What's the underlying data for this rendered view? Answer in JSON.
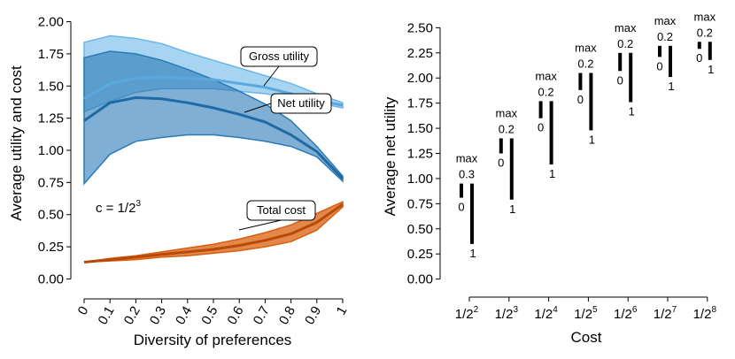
{
  "chart_data": [
    {
      "type": "area",
      "xlabel": "Diversity of preferences",
      "ylabel": "Average utility and cost",
      "x": [
        0,
        0.1,
        0.2,
        0.3,
        0.4,
        0.5,
        0.6,
        0.7,
        0.8,
        0.9,
        1
      ],
      "x_tick_labels": [
        "0",
        "0.1",
        "0.2",
        "0.3",
        "0.4",
        "0.5",
        "0.6",
        "0.7",
        "0.8",
        "0.9",
        "1"
      ],
      "ylim": [
        -0.1,
        2.1
      ],
      "y_ticks": [
        0,
        0.25,
        0.5,
        0.75,
        1,
        1.25,
        1.5,
        1.75,
        2
      ],
      "y_tick_labels": [
        "0.00",
        "0.25",
        "0.50",
        "0.75",
        "1.00",
        "1.25",
        "1.50",
        "1.75",
        "2.00"
      ],
      "annotation": {
        "text": "c = 1/2",
        "superscript": "3"
      },
      "series": [
        {
          "name": "Gross utility",
          "color": "#6bb7e8",
          "mean": [
            1.4,
            1.52,
            1.56,
            1.57,
            1.56,
            1.55,
            1.52,
            1.49,
            1.44,
            1.39,
            1.35
          ],
          "low": [
            1.3,
            1.38,
            1.45,
            1.48,
            1.48,
            1.48,
            1.46,
            1.44,
            1.41,
            1.37,
            1.33
          ],
          "high": [
            1.84,
            1.89,
            1.87,
            1.83,
            1.76,
            1.7,
            1.64,
            1.58,
            1.52,
            1.44,
            1.37
          ]
        },
        {
          "name": "Net utility",
          "color": "#2a7ab8",
          "mean": [
            1.23,
            1.37,
            1.41,
            1.4,
            1.37,
            1.33,
            1.28,
            1.22,
            1.12,
            0.99,
            0.78
          ],
          "low": [
            0.74,
            0.97,
            1.07,
            1.1,
            1.12,
            1.12,
            1.1,
            1.07,
            1.03,
            0.95,
            0.76
          ],
          "high": [
            1.72,
            1.77,
            1.75,
            1.7,
            1.63,
            1.55,
            1.46,
            1.36,
            1.23,
            1.03,
            0.8
          ]
        },
        {
          "name": "Total cost",
          "color": "#d95f0e",
          "mean": [
            0.13,
            0.15,
            0.17,
            0.19,
            0.21,
            0.23,
            0.26,
            0.3,
            0.35,
            0.44,
            0.58
          ],
          "low": [
            0.13,
            0.14,
            0.15,
            0.17,
            0.18,
            0.2,
            0.22,
            0.25,
            0.29,
            0.38,
            0.56
          ],
          "high": [
            0.13,
            0.16,
            0.18,
            0.21,
            0.24,
            0.27,
            0.31,
            0.36,
            0.42,
            0.51,
            0.6
          ]
        }
      ]
    },
    {
      "type": "bar",
      "xlabel": "Cost",
      "ylabel": "Average net utility",
      "categories": [
        "1/2",
        "1/2",
        "1/2",
        "1/2",
        "1/2",
        "1/2",
        "1/2"
      ],
      "category_superscripts": [
        "2",
        "3",
        "4",
        "5",
        "6",
        "7",
        "8"
      ],
      "ylim": [
        -0.1,
        2.6
      ],
      "y_ticks": [
        0,
        0.25,
        0.5,
        0.75,
        1,
        1.25,
        1.5,
        1.75,
        2,
        2.25,
        2.5
      ],
      "y_tick_labels": [
        "0.00",
        "0.25",
        "0.50",
        "0.75",
        "1.00",
        "1.25",
        "1.50",
        "1.75",
        "2.00",
        "2.25",
        "2.50"
      ],
      "intervals": [
        {
          "max_label": "max",
          "top_label": "0.3",
          "left_label": "0",
          "right_label": "1",
          "left_range": [
            0.81,
            0.95
          ],
          "right_range": [
            0.35,
            0.95
          ]
        },
        {
          "max_label": "max",
          "top_label": "0.2",
          "left_label": "0",
          "right_label": "1",
          "left_range": [
            1.25,
            1.4
          ],
          "right_range": [
            0.79,
            1.4
          ]
        },
        {
          "max_label": "max",
          "top_label": "0.2",
          "left_label": "0",
          "right_label": "1",
          "left_range": [
            1.6,
            1.77
          ],
          "right_range": [
            1.14,
            1.77
          ]
        },
        {
          "max_label": "max",
          "top_label": "0.2",
          "left_label": "0",
          "right_label": "1",
          "left_range": [
            1.88,
            2.05
          ],
          "right_range": [
            1.48,
            2.05
          ]
        },
        {
          "max_label": "max",
          "top_label": "0.2",
          "left_label": "0",
          "right_label": "1",
          "left_range": [
            2.07,
            2.25
          ],
          "right_range": [
            1.76,
            2.25
          ]
        },
        {
          "max_label": "max",
          "top_label": "0.2",
          "left_label": "0",
          "right_label": "1",
          "left_range": [
            2.21,
            2.32
          ],
          "right_range": [
            2.01,
            2.32
          ]
        },
        {
          "max_label": "max",
          "top_label": "0.2",
          "left_label": "0",
          "right_label": "1",
          "left_range": [
            2.29,
            2.36
          ],
          "right_range": [
            2.18,
            2.36
          ]
        }
      ]
    }
  ]
}
